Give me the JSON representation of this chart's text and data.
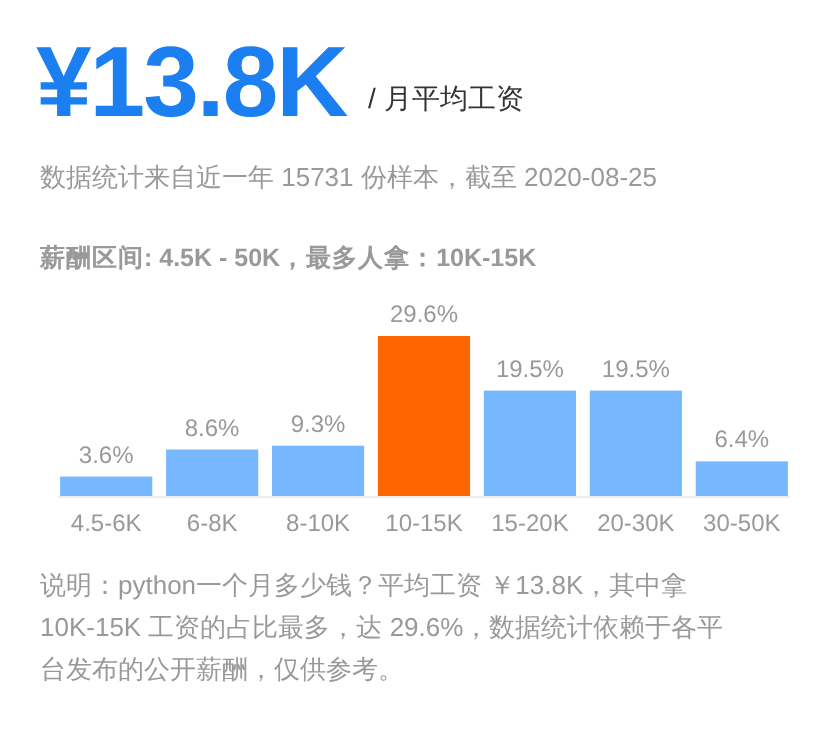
{
  "chart_data": {
    "type": "bar",
    "title": "¥13.8K",
    "subtitle": "/ 月平均工资",
    "annotations": [
      "数据统计来自近一年 15731 份样本，截至 2020-08-25",
      "薪酬区间: 4.5K - 50K，最多人拿：10K-15K",
      "说明：python一个月多少钱？平均工资 ￥13.8K，其中拿 10K-15K 工资的占比最多，达 29.6%，数据统计依赖于各平台发布的公开薪酬，仅供参考。"
    ],
    "categories": [
      "4.5-6K",
      "6-8K",
      "8-10K",
      "10-15K",
      "15-20K",
      "20-30K",
      "30-50K"
    ],
    "values": [
      3.6,
      8.6,
      9.3,
      29.6,
      19.5,
      19.5,
      6.4
    ],
    "colors": [
      "#77b7fe",
      "#77b7fe",
      "#77b7fe",
      "#ff6600",
      "#77b7fe",
      "#77b7fe",
      "#77b7fe"
    ],
    "value_labels": [
      "3.6%",
      "8.6%",
      "9.3%",
      "29.6%",
      "19.5%",
      "19.5%",
      "6.4%"
    ]
  }
}
